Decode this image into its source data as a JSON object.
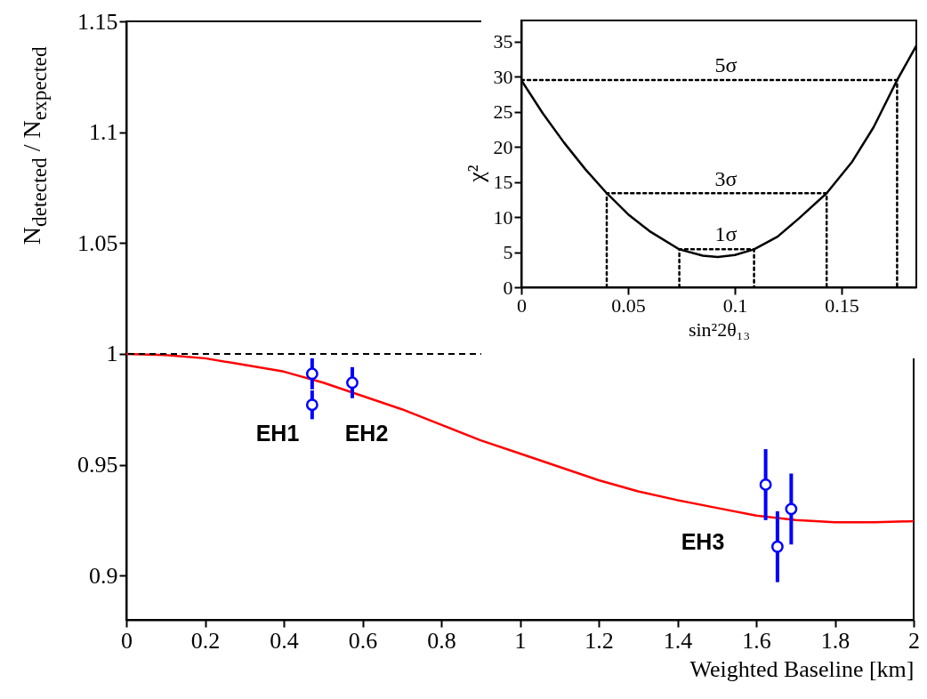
{
  "chart_data": [
    {
      "type": "scatter",
      "xlabel": "Weighted Baseline [km]",
      "ylabel": "N$_{detected}$ / N$_{expected}$",
      "xlim": [
        0,
        2
      ],
      "xticks": [
        0,
        0.2,
        0.4,
        0.6,
        0.8,
        1,
        1.2,
        1.4,
        1.6,
        1.8,
        2
      ],
      "ylim": [
        0.88,
        1.15
      ],
      "yticks": [
        0.9,
        0.95,
        1,
        1.05,
        1.1,
        1.15
      ],
      "grid": false,
      "series": [
        {
          "type": "line",
          "color": "#ff0000",
          "x": [
            0,
            0.1,
            0.2,
            0.3,
            0.4,
            0.5,
            0.6,
            0.7,
            0.8,
            0.9,
            1.0,
            1.1,
            1.2,
            1.3,
            1.4,
            1.5,
            1.6,
            1.7,
            1.8,
            1.9,
            2.0
          ],
          "values": [
            1.0,
            0.9995,
            0.998,
            0.995,
            0.992,
            0.987,
            0.981,
            0.975,
            0.968,
            0.961,
            0.955,
            0.949,
            0.943,
            0.938,
            0.934,
            0.9305,
            0.927,
            0.925,
            0.924,
            0.924,
            0.9245
          ]
        },
        {
          "color": "#0000ff",
          "marker": "circle",
          "x": [
            0.472,
            0.472,
            0.574,
            1.624,
            1.654,
            1.689
          ],
          "values": [
            0.991,
            0.977,
            0.987,
            0.941,
            0.913,
            0.93
          ],
          "errors": [
            0.007,
            0.0065,
            0.007,
            0.016,
            0.016,
            0.016
          ]
        }
      ],
      "ref_lines": [
        {
          "axis": "y",
          "value": 1,
          "color": "#000000",
          "line_style": "dashed"
        }
      ],
      "annotations": [
        "EH1",
        "EH2",
        "EH3"
      ]
    },
    {
      "type": "line",
      "xlabel": "sin²2θ₁₃",
      "ylabel": "χ²",
      "xlim": [
        0,
        0.185
      ],
      "xticks": [
        0,
        0.05,
        0.1,
        0.15
      ],
      "ylim": [
        0,
        38
      ],
      "yticks": [
        0,
        5,
        10,
        15,
        20,
        25,
        30,
        35
      ],
      "grid": false,
      "series": [
        {
          "type": "line",
          "color": "#000000",
          "x": [
            0,
            0.01,
            0.02,
            0.03,
            0.04,
            0.05,
            0.06,
            0.074,
            0.085,
            0.092,
            0.1,
            0.109,
            0.12,
            0.13,
            0.143,
            0.155,
            0.165,
            0.176,
            0.185
          ],
          "values": [
            29.5,
            24.8,
            20.6,
            16.8,
            13.4,
            10.4,
            8.0,
            5.4,
            4.5,
            4.3,
            4.6,
            5.4,
            7.2,
            9.8,
            13.4,
            17.9,
            22.8,
            29.5,
            34.4
          ]
        },
        {
          "color": "#000000",
          "line_style": "dotted",
          "x": [
            0.074,
            0.074,
            0.109,
            0.109
          ],
          "values": [
            0,
            5.4,
            5.4,
            0
          ]
        },
        {
          "color": "#000000",
          "line_style": "dotted",
          "x": [
            0.04,
            0.04,
            0.143,
            0.143
          ],
          "values": [
            0,
            13.4,
            13.4,
            0
          ]
        },
        {
          "color": "#000000",
          "line_style": "dotted",
          "x": [
            0,
            0.176,
            0.176
          ],
          "values": [
            29.5,
            29.5,
            0
          ]
        }
      ],
      "annotations": [
        "5σ",
        "3σ",
        "1σ"
      ]
    }
  ]
}
